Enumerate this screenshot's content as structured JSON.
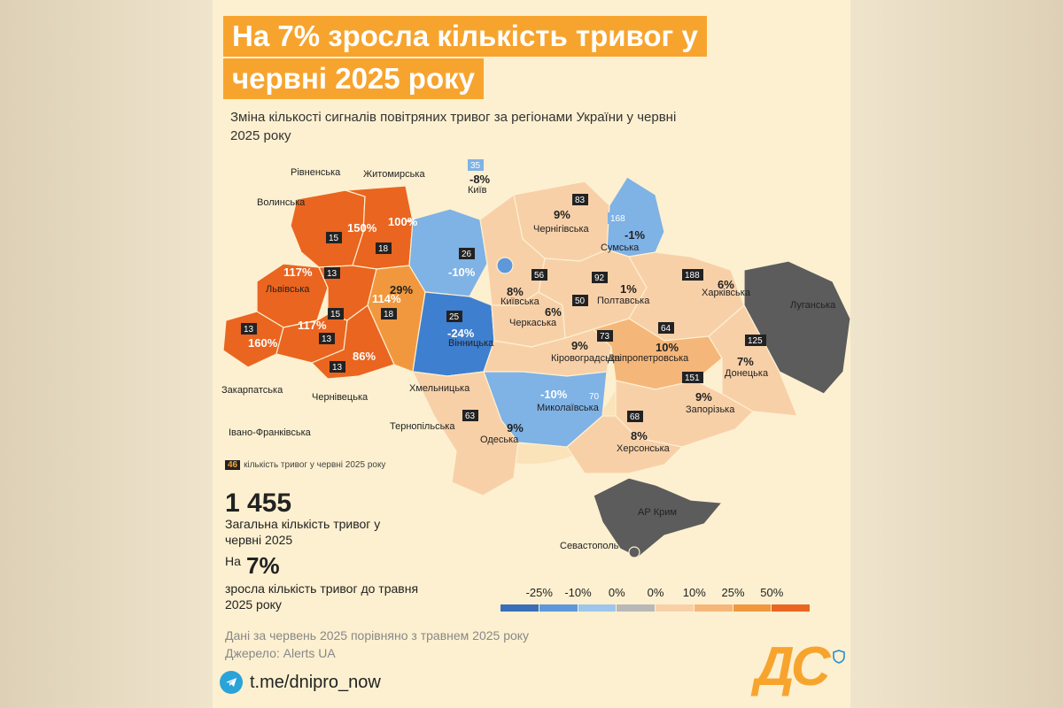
{
  "title_line1": "На 7% зросла кількість тривог у",
  "title_line2": "червні 2025 року",
  "subtitle": "Зміна кількості сигналів повітряних тривог за регіонами України у червні 2025 року",
  "count_legend": {
    "chip": "46",
    "text": "кількість тривог у червні 2025 року"
  },
  "total": {
    "value": "1 455",
    "label": "Загальна кількість тривог у червні 2025"
  },
  "growth": {
    "prefix": "На",
    "value": "7%",
    "label": "зросла кількість тривог до травня 2025 року"
  },
  "notes": {
    "data": "Дані за червень 2025 порівняно з травнем 2025 року",
    "source": "Джерело: Alerts UA"
  },
  "telegram": "t.me/dnipro_now",
  "logo": "ДС",
  "scale": {
    "labels": [
      "-25%",
      "-10%",
      "0%",
      "0%",
      "10%",
      "25%",
      "50%"
    ],
    "colors": [
      "#3a6fb8",
      "#5d98db",
      "#9ec5ea",
      "#b8b8b8",
      "#f8d0a8",
      "#f5b679",
      "#f1983e",
      "#ea6520"
    ]
  },
  "colors": {
    "orange_title": "#f7a42e",
    "occupied": "#5c5c5c"
  },
  "regions": [
    {
      "id": "volynska",
      "name": "Волинська",
      "change": "150%",
      "count": "15",
      "color": "#ea6520"
    },
    {
      "id": "rivnenska",
      "name": "Рівненська",
      "change": "100%",
      "count": "18",
      "color": "#ea6520"
    },
    {
      "id": "zhytomyrska",
      "name": "Житомирська",
      "change": "-10%",
      "count": "26",
      "color": "#7fb2e5"
    },
    {
      "id": "kyiv",
      "name": "Київ",
      "change": "-8%",
      "count": "35",
      "color": "#5d98db"
    },
    {
      "id": "chernihivska",
      "name": "Чернігівська",
      "change": "9%",
      "count": "83",
      "color": "#f8d0a8"
    },
    {
      "id": "sumska",
      "name": "Сумська",
      "change": "-1%",
      "count": "168",
      "color": "#7fb2e5"
    },
    {
      "id": "lvivska",
      "name": "Львівська",
      "change": "117%",
      "count": "13",
      "color": "#ea6520"
    },
    {
      "id": "ternopilska",
      "name": "Тернопільська",
      "change": "114%",
      "count": "15",
      "color": "#ea6520"
    },
    {
      "id": "khmelnytska",
      "name": "Хмельницька",
      "change": "29%",
      "count": "18",
      "color": "#f1983e"
    },
    {
      "id": "vinnytska",
      "name": "Вінницька",
      "change": "-24%",
      "count": "25",
      "color": "#3f7fcf"
    },
    {
      "id": "kyivska",
      "name": "Київська",
      "change": "8%",
      "count": "56",
      "color": "#f8d0a8"
    },
    {
      "id": "cherkaska",
      "name": "Черкаська",
      "change": "6%",
      "count": "50",
      "color": "#f8d0a8"
    },
    {
      "id": "poltavska",
      "name": "Полтавська",
      "change": "1%",
      "count": "92",
      "color": "#f8d0a8"
    },
    {
      "id": "kharkivska",
      "name": "Харківська",
      "change": "6%",
      "count": "188",
      "color": "#f8d0a8"
    },
    {
      "id": "luhanska",
      "name": "Луганська",
      "change": "",
      "count": "",
      "color": "#5c5c5c"
    },
    {
      "id": "zakarpatska",
      "name": "Закарпатська",
      "change": "160%",
      "count": "13",
      "color": "#ea6520"
    },
    {
      "id": "ivanofrankivska",
      "name": "Івано-Франківська",
      "change": "117%",
      "count": "13",
      "color": "#ea6520"
    },
    {
      "id": "chernivetska",
      "name": "Чернівецька",
      "change": "86%",
      "count": "13",
      "color": "#ea6520"
    },
    {
      "id": "kirovohradska",
      "name": "Кіровоградська",
      "change": "9%",
      "count": "73",
      "color": "#f8d0a8"
    },
    {
      "id": "dnipropetrovska",
      "name": "Дніпропетровська",
      "change": "10%",
      "count": "64",
      "color": "#f5b679"
    },
    {
      "id": "donetska",
      "name": "Донецька",
      "change": "7%",
      "count": "125",
      "color": "#f8d0a8"
    },
    {
      "id": "mykolaivska",
      "name": "Миколаївська",
      "change": "-10%",
      "count": "70",
      "color": "#7fb2e5"
    },
    {
      "id": "zaporizka",
      "name": "Запорізька",
      "change": "9%",
      "count": "151",
      "color": "#f8d0a8"
    },
    {
      "id": "odeska",
      "name": "Одеська",
      "change": "9%",
      "count": "63",
      "color": "#f8d0a8"
    },
    {
      "id": "khersonska",
      "name": "Херсонська",
      "change": "8%",
      "count": "68",
      "color": "#f8d0a8"
    },
    {
      "id": "crimea",
      "name": "АР Крим",
      "change": "",
      "count": "",
      "color": "#5c5c5c"
    },
    {
      "id": "sevastopol",
      "name": "Севастополь",
      "change": "",
      "count": "",
      "color": "#5c5c5c"
    }
  ]
}
